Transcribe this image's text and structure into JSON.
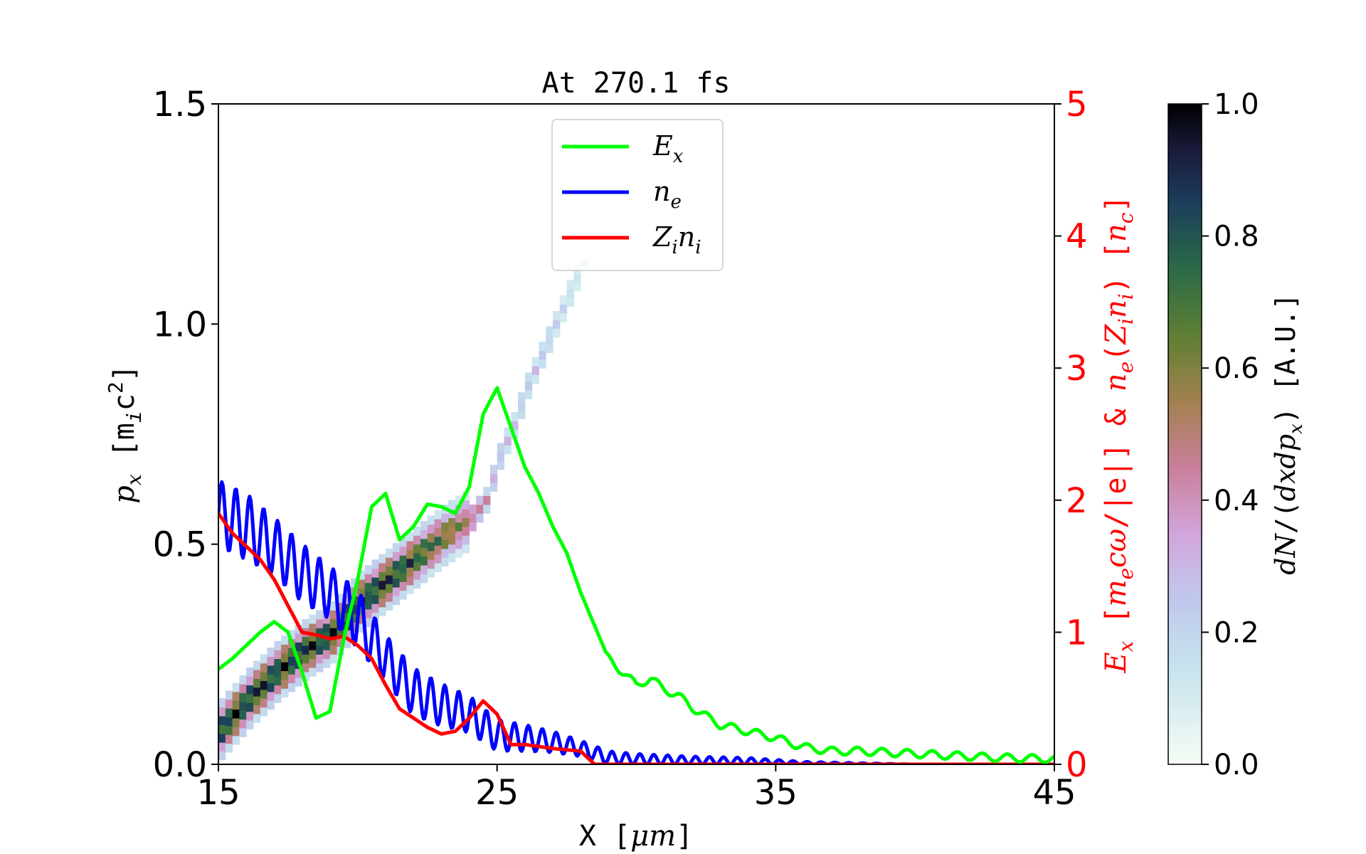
{
  "chart_data": {
    "type": "line",
    "title": "At 270.1 fs",
    "xlabel": "X [μm]",
    "ylabel_left": "p_x [m_i c^2]",
    "ylabel_right": "E_x [m_e cω/|e|] & n_e(Z_i n_i) [n_c]",
    "colorbar_label": "dN/(dx dp_x) [A.U.]",
    "xlim": [
      15,
      45
    ],
    "ylim_left": [
      0,
      1.5
    ],
    "ylim_right": [
      0,
      5
    ],
    "colorbar_lim": [
      0,
      1
    ],
    "xticks": [
      "15",
      "25",
      "35",
      "45"
    ],
    "yticks_left": [
      "0.0",
      "0.5",
      "1.0",
      "1.5"
    ],
    "yticks_right": [
      "0",
      "1",
      "2",
      "3",
      "4",
      "5"
    ],
    "colorbar_ticks": [
      "0.0",
      "0.2",
      "0.4",
      "0.6",
      "0.8",
      "1.0"
    ],
    "legend_position": "upper-center",
    "colors": {
      "Ex": "#00ff00",
      "ne": "#0000ff",
      "Zini": "#ff0000",
      "right_axis": "#ff0000"
    },
    "series": [
      {
        "name": "E_x",
        "axis": "right",
        "color": "#00ff00",
        "x": [
          15.0,
          15.5,
          16.0,
          16.5,
          17.0,
          17.5,
          18.0,
          18.5,
          19.0,
          19.5,
          20.0,
          20.5,
          21.0,
          21.5,
          22.0,
          22.5,
          23.0,
          23.5,
          24.0,
          24.5,
          25.0,
          25.5,
          26.0,
          26.5,
          27.0,
          27.5,
          28.0,
          28.5,
          29.0,
          29.5,
          30.0,
          30.5,
          31.0,
          31.5,
          32.0,
          33.0,
          34.0,
          35.0,
          36.0,
          37.0,
          38.0,
          40.0,
          42.0,
          43.0,
          45.0
        ],
        "y": [
          0.72,
          0.8,
          0.9,
          1.0,
          1.08,
          1.0,
          0.7,
          0.35,
          0.4,
          0.95,
          1.4,
          1.95,
          2.05,
          1.7,
          1.8,
          1.97,
          1.95,
          1.9,
          2.1,
          2.65,
          2.85,
          2.55,
          2.25,
          2.05,
          1.8,
          1.6,
          1.3,
          1.05,
          0.8,
          0.7,
          0.6,
          0.65,
          0.57,
          0.52,
          0.43,
          0.3,
          0.25,
          0.2,
          0.13,
          0.1,
          0.1,
          0.08,
          0.06,
          0.05,
          0.04
        ]
      },
      {
        "name": "n_e",
        "axis": "right",
        "color": "#0000ff",
        "oscillating": true,
        "x": [
          15.0,
          16.0,
          17.0,
          18.0,
          19.0,
          20.0,
          21.0,
          22.0,
          23.0,
          24.0,
          25.0,
          26.0,
          27.0,
          28.0,
          29.0,
          30.0,
          32.0,
          34.0,
          36.0,
          40.0,
          45.0
        ],
        "y": [
          1.9,
          1.8,
          1.65,
          1.45,
          1.3,
          1.1,
          0.8,
          0.55,
          0.45,
          0.38,
          0.22,
          0.2,
          0.17,
          0.12,
          0.05,
          0.04,
          0.03,
          0.025,
          0.01,
          0.0,
          0.0
        ],
        "amplitude": [
          0.25,
          0.25,
          0.22,
          0.22,
          0.2,
          0.22,
          0.18,
          0.18,
          0.16,
          0.14,
          0.12,
          0.1,
          0.08,
          0.06,
          0.05,
          0.04,
          0.03,
          0.025,
          0.01,
          0.0,
          0.0
        ]
      },
      {
        "name": "Z_i n_i",
        "axis": "right",
        "color": "#ff0000",
        "x": [
          15.0,
          15.5,
          16.0,
          16.5,
          17.0,
          17.5,
          18.0,
          18.5,
          19.0,
          19.5,
          20.0,
          20.5,
          21.0,
          21.5,
          22.0,
          22.5,
          23.0,
          23.5,
          24.0,
          24.5,
          25.0,
          25.5,
          26.0,
          27.0,
          28.0,
          28.5,
          29.0,
          45.0
        ],
        "y": [
          1.9,
          1.75,
          1.65,
          1.55,
          1.4,
          1.2,
          1.0,
          0.98,
          0.95,
          0.97,
          0.9,
          0.8,
          0.6,
          0.42,
          0.35,
          0.28,
          0.23,
          0.25,
          0.35,
          0.48,
          0.38,
          0.15,
          0.15,
          0.12,
          0.1,
          0.0,
          0.0,
          0.0
        ]
      },
      {
        "name": "p_x phase space",
        "axis": "left",
        "type": "heatmap-ridge",
        "x": [
          15.0,
          16.0,
          17.0,
          18.0,
          19.0,
          20.0,
          21.0,
          22.0,
          23.0,
          24.0,
          24.5,
          25.0,
          25.5,
          26.0,
          26.5,
          27.0,
          27.5,
          28.0
        ],
        "y": [
          0.08,
          0.15,
          0.21,
          0.26,
          0.3,
          0.37,
          0.42,
          0.47,
          0.52,
          0.56,
          0.6,
          0.7,
          0.77,
          0.86,
          0.93,
          1.0,
          1.07,
          1.14
        ],
        "density": [
          1.0,
          1.0,
          1.0,
          1.0,
          1.0,
          1.0,
          0.98,
          0.9,
          0.75,
          0.6,
          0.45,
          0.35,
          0.3,
          0.3,
          0.3,
          0.25,
          0.2,
          0.15
        ]
      }
    ]
  },
  "legend": {
    "items": [
      {
        "key": "E",
        "sub": "x",
        "color": "#00ff00"
      },
      {
        "key": "n",
        "sub": "e",
        "color": "#0000ff"
      },
      {
        "key": "Z",
        "sub": "i",
        "key2": "n",
        "sub2": "i",
        "color": "#ff0000"
      }
    ]
  }
}
